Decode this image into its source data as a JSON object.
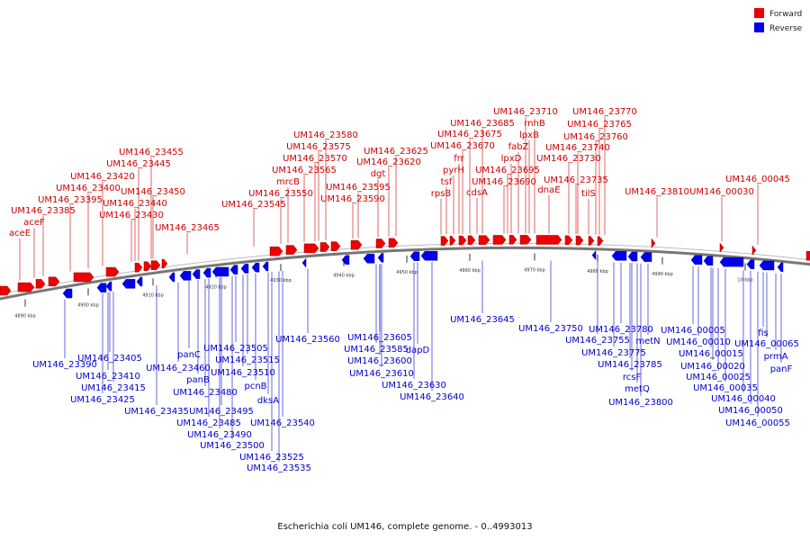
{
  "legend": {
    "forward_label": "Forward",
    "reverse_label": "Reverse",
    "forward_color": "#ee0000",
    "reverse_color": "#0000ee"
  },
  "caption": "Escherichia coli UM146, complete genome. - 0..4993013",
  "ticks": [
    "4890 kbp",
    "4900 kbp",
    "4910 kbp",
    "4920 kbp",
    "4930 kbp",
    "4940 kbp",
    "4950 kbp",
    "4960 kbp",
    "4970 kbp",
    "4980 kbp",
    "4990 kbp",
    "10 kbp"
  ],
  "forward_labels": [
    "aceE",
    "aceF",
    "UM146_23385",
    "UM146_23395",
    "UM146_23400",
    "UM146_23420",
    "UM146_23445",
    "UM146_23455",
    "UM146_23450",
    "UM146_23440",
    "UM146_23430",
    "UM146_23465",
    "UM146_23545",
    "UM146_23550",
    "mrcB",
    "UM146_23565",
    "UM146_23570",
    "UM146_23575",
    "UM146_23580",
    "UM146_23590",
    "UM146_23595",
    "dgt",
    "UM146_23620",
    "UM146_23625",
    "rpsB",
    "tsf",
    "pyrH",
    "frr",
    "UM146_23670",
    "UM146_23675",
    "UM146_23685",
    "cdsA",
    "UM146_23690",
    "UM146_23695",
    "lpxD",
    "fabZ",
    "lpxB",
    "rnhB",
    "UM146_23710",
    "dnaE",
    "UM146_23730",
    "UM146_23735",
    "UM146_23740",
    "UM146_23760",
    "UM146_23765",
    "UM146_23770",
    "tilS",
    "UM146_23810",
    "UM146_00030",
    "UM146_00045"
  ],
  "reverse_labels": [
    "UM146_23390",
    "UM146_23405",
    "UM146_23410",
    "UM146_23415",
    "UM146_23425",
    "UM146_23435",
    "panC",
    "UM146_23460",
    "panB",
    "UM146_23480",
    "UM146_23495",
    "UM146_23485",
    "UM146_23490",
    "UM146_23500",
    "UM146_23505",
    "UM146_23515",
    "UM146_23510",
    "pcnB",
    "dksA",
    "UM146_23540",
    "UM146_23525",
    "UM146_23535",
    "UM146_23560",
    "UM146_23585",
    "UM146_23600",
    "UM146_23605",
    "UM146_23610",
    "dapD",
    "UM146_23630",
    "UM146_23640",
    "UM146_23645",
    "UM146_23750",
    "UM146_23755",
    "UM146_23775",
    "UM146_23780",
    "metN",
    "UM146_23785",
    "rcsF",
    "metQ",
    "UM146_23800",
    "UM146_00005",
    "UM146_00010",
    "UM146_00015",
    "UM146_00020",
    "UM146_00025",
    "UM146_00035",
    "UM146_00040",
    "UM146_00050",
    "UM146_00055",
    "fis",
    "UM146_00065",
    "prmA",
    "panF"
  ]
}
